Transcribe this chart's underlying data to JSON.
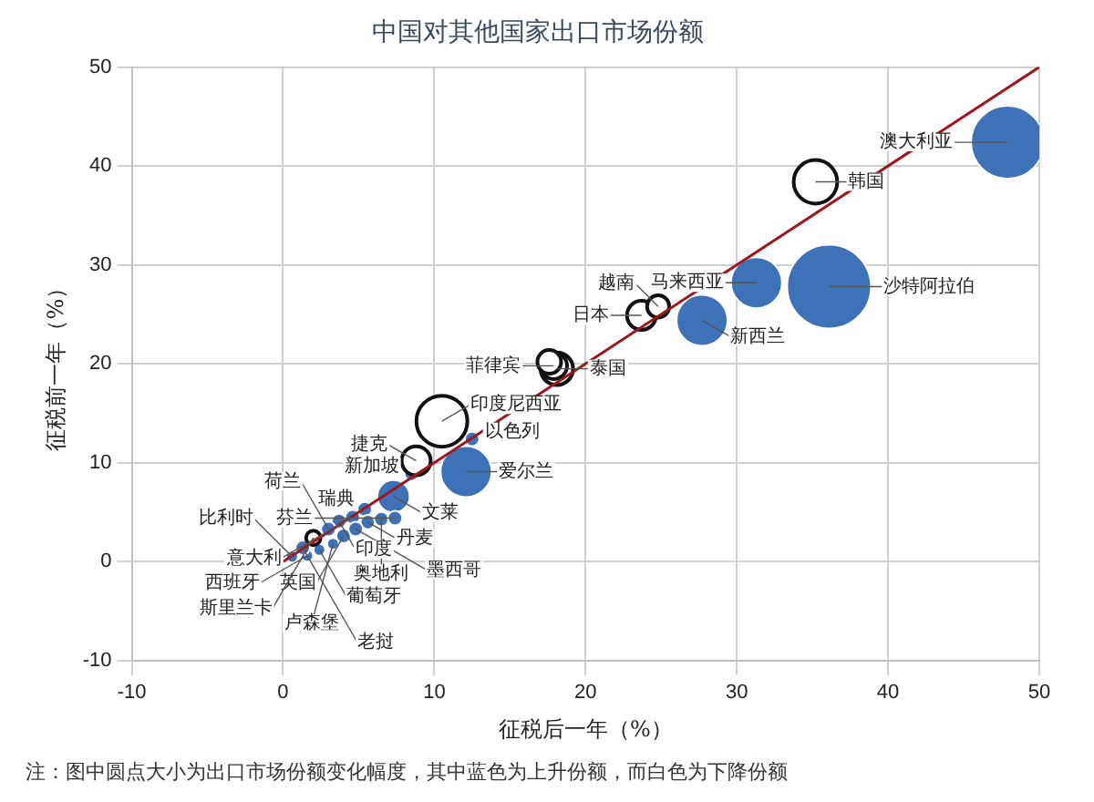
{
  "chart_data": {
    "type": "bubble",
    "title": "中国对其他国家出口市场份额",
    "xlabel": "征税后一年（%）",
    "ylabel": "征税前一年（%）",
    "xlim": [
      -10,
      50
    ],
    "ylim": [
      -10,
      50
    ],
    "xticks": [
      -10,
      0,
      10,
      20,
      30,
      40,
      50
    ],
    "yticks": [
      -10,
      0,
      10,
      20,
      30,
      40,
      50
    ],
    "grid": true,
    "legend": false,
    "series": [
      {
        "x": [
          47.9,
          36.1,
          31.3,
          27.7,
          12.1,
          12.5,
          8.5,
          7.3,
          5.4,
          5.6,
          6.5,
          7.4,
          4.6,
          4.0,
          4.8,
          3.7,
          3.0,
          1.6,
          2.4,
          0.6,
          1.3,
          3.3,
          35.2,
          23.7,
          24.8,
          18.1,
          17.9,
          17.6,
          10.5,
          8.8,
          2.0
        ],
        "values": [
          42.4,
          27.8,
          28.2,
          24.4,
          9.1,
          12.4,
          8.9,
          6.6,
          5.3,
          4.0,
          4.3,
          4.4,
          4.5,
          2.6,
          3.3,
          4.1,
          3.3,
          0.6,
          1.2,
          0.5,
          1.4,
          1.8,
          38.4,
          24.9,
          25.8,
          19.5,
          19.8,
          20.2,
          14.2,
          10.2,
          2.4
        ],
        "sizes": [
          0.76,
          1,
          0.37,
          0.37,
          0.37,
          0.03,
          0.03,
          0.15,
          0.03,
          0.03,
          0.03,
          0.03,
          0.03,
          0.03,
          0.03,
          0.03,
          0.03,
          0.02,
          0.02,
          0.02,
          0.03,
          0.02,
          0.27,
          0.12,
          0.07,
          0.15,
          0.1,
          0.08,
          0.37,
          0.12,
          0.03
        ],
        "colors": [
          "#3d72b8",
          "#3d72b8",
          "#3d72b8",
          "#3d72b8",
          "#3d72b8",
          "#3d72b8",
          "#3d72b8",
          "#3d72b8",
          "#3d72b8",
          "#3d72b8",
          "#3d72b8",
          "#3d72b8",
          "#3d72b8",
          "#3d72b8",
          "#3d72b8",
          "#3d72b8",
          "#3d72b8",
          "#3d72b8",
          "#3d72b8",
          "#3d72b8",
          "#3d72b8",
          "#3d72b8",
          "#ffffff",
          "#ffffff",
          "#ffffff",
          "#ffffff",
          "#ffffff",
          "#ffffff",
          "#ffffff",
          "#ffffff",
          "#ffffff"
        ]
      },
      {
        "type": "line",
        "x": [
          0,
          50
        ],
        "values": [
          0,
          50
        ],
        "color": "#a0161c"
      }
    ],
    "annotations": [
      {
        "text": "澳大利亚",
        "x": 47.9,
        "y": 42.4
      },
      {
        "text": "沙特阿拉伯",
        "x": 36.1,
        "y": 27.8
      },
      {
        "text": "马来西亚",
        "x": 31.3,
        "y": 28.2
      },
      {
        "text": "新西兰",
        "x": 27.7,
        "y": 24.4
      },
      {
        "text": "爱尔兰",
        "x": 12.1,
        "y": 9.1
      },
      {
        "text": "以色列",
        "x": 12.5,
        "y": 12.4
      },
      {
        "text": "新加坡",
        "x": 8.5,
        "y": 8.9
      },
      {
        "text": "文莱",
        "x": 7.3,
        "y": 6.6
      },
      {
        "text": "瑞典",
        "x": 5.4,
        "y": 5.3
      },
      {
        "text": "丹麦",
        "x": 5.6,
        "y": 4.0
      },
      {
        "text": "奥地利",
        "x": 6.5,
        "y": 4.3
      },
      {
        "text": "芬兰",
        "x": 7.4,
        "y": 4.4
      },
      {
        "text": "意大利",
        "x": 4.6,
        "y": 4.5
      },
      {
        "text": "英国",
        "x": 4.0,
        "y": 2.6
      },
      {
        "text": "墨西哥",
        "x": 4.8,
        "y": 3.3
      },
      {
        "text": "印度",
        "x": 3.7,
        "y": 4.1
      },
      {
        "text": "荷兰",
        "x": 3.0,
        "y": 3.3
      },
      {
        "text": "西班牙",
        "x": 1.6,
        "y": 0.6
      },
      {
        "text": "葡萄牙",
        "x": 2.4,
        "y": 1.2
      },
      {
        "text": "比利时",
        "x": 0.6,
        "y": 0.5
      },
      {
        "text": "老挝",
        "x": 1.3,
        "y": 1.4
      },
      {
        "text": "卢森堡",
        "x": 3.3,
        "y": 1.8
      },
      {
        "text": "韩国",
        "x": 35.2,
        "y": 38.4
      },
      {
        "text": "日本",
        "x": 23.7,
        "y": 24.9
      },
      {
        "text": "越南",
        "x": 24.8,
        "y": 25.8
      },
      {
        "text": "泰国",
        "x": 18.1,
        "y": 19.5
      },
      {
        "text": "菲律宾",
        "x": 17.9,
        "y": 19.8
      },
      {
        "text": "印度尼西亚",
        "x": 10.5,
        "y": 14.2
      },
      {
        "text": "捷克",
        "x": 8.8,
        "y": 10.2
      },
      {
        "text": "斯里兰卡",
        "x": 2.0,
        "y": 2.4
      },
      "注：图中圆点大小为出口市场份额变化幅度，其中蓝色为上升份额，而白色为下降份额"
    ]
  }
}
